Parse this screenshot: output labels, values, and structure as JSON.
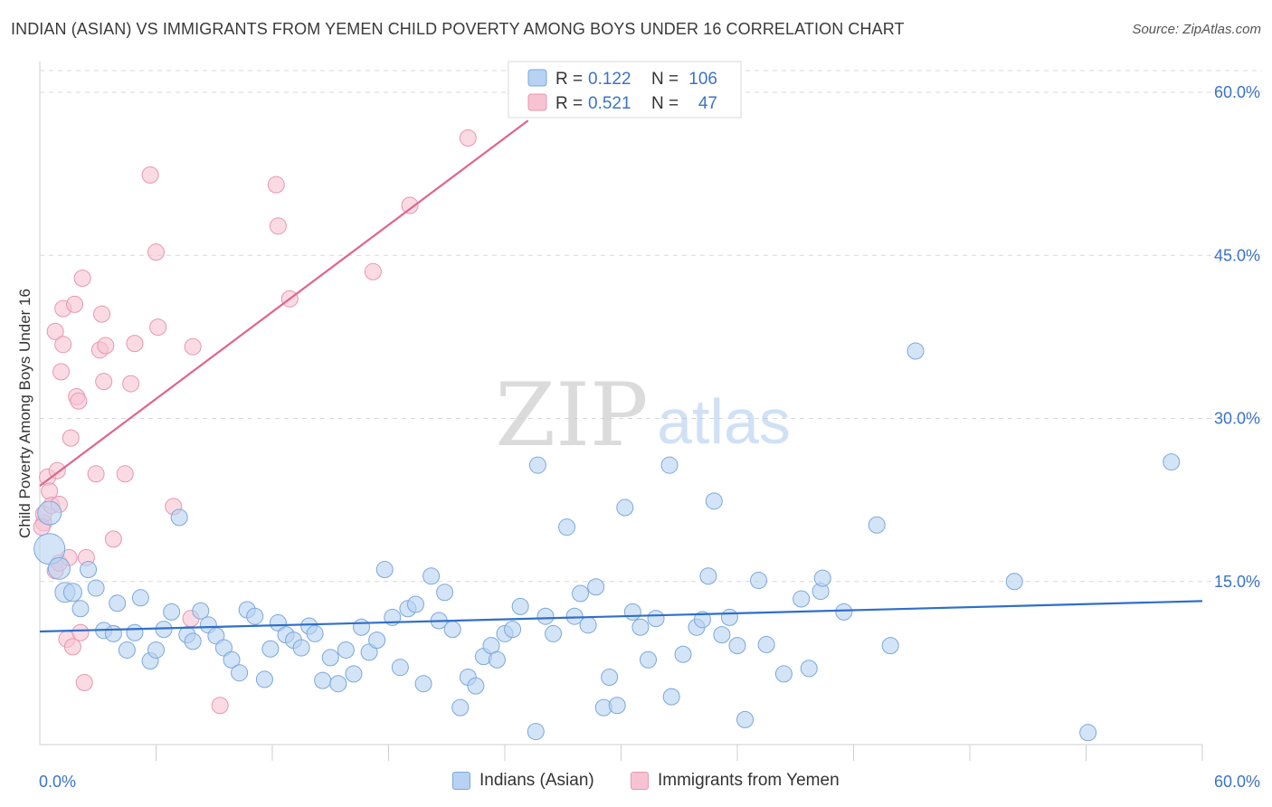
{
  "title": "INDIAN (ASIAN) VS IMMIGRANTS FROM YEMEN CHILD POVERTY AMONG BOYS UNDER 16 CORRELATION CHART",
  "source": "Source: ZipAtlas.com",
  "watermark": {
    "zip": "ZIP",
    "atlas": "atlas"
  },
  "colors": {
    "blue_fill": "#b7d2f2",
    "blue_stroke": "#7aa8dc",
    "blue_line": "#2f6fc9",
    "pink_fill": "#f7c3d2",
    "pink_stroke": "#e896b0",
    "pink_line": "#e0648c",
    "tick_label": "#3b73c6",
    "grid": "#d9d9d9"
  },
  "legend_top": [
    {
      "series": "blue",
      "r_label": "R =",
      "r_value": "0.122",
      "n_label": "N =",
      "n_value": "106"
    },
    {
      "series": "pink",
      "r_label": "R =",
      "r_value": "0.521",
      "n_label": "N =",
      "n_value": "47"
    }
  ],
  "legend_bottom": [
    {
      "series": "blue",
      "label": "Indians (Asian)"
    },
    {
      "series": "pink",
      "label": "Immigrants from Yemen"
    }
  ],
  "chart_data": {
    "type": "scatter",
    "title": "INDIAN (ASIAN) VS IMMIGRANTS FROM YEMEN CHILD POVERTY AMONG BOYS UNDER 16 CORRELATION CHART",
    "xlabel": "",
    "ylabel": "Child Poverty Among Boys Under 16",
    "xlim": [
      0,
      60
    ],
    "ylim": [
      0,
      62
    ],
    "x_tick_labels": [
      "0.0%",
      "60.0%"
    ],
    "y_ticks": [
      15,
      30,
      45,
      60
    ],
    "y_tick_labels": [
      "15.0%",
      "30.0%",
      "45.0%",
      "60.0%"
    ],
    "grid": true,
    "series": [
      {
        "name": "Indians (Asian)",
        "color": "blue",
        "regression": {
          "x": [
            0,
            60
          ],
          "y": [
            10.4,
            13.2
          ]
        },
        "points": [
          [
            0.5,
            18.0
          ],
          [
            0.5,
            21.3
          ],
          [
            1.0,
            16.2
          ],
          [
            1.3,
            14.0
          ],
          [
            1.7,
            14.0
          ],
          [
            2.1,
            12.5
          ],
          [
            2.5,
            16.1
          ],
          [
            2.9,
            14.4
          ],
          [
            3.3,
            10.5
          ],
          [
            3.8,
            10.2
          ],
          [
            4.0,
            13.0
          ],
          [
            4.5,
            8.7
          ],
          [
            4.9,
            10.3
          ],
          [
            5.2,
            13.5
          ],
          [
            5.7,
            7.7
          ],
          [
            6.0,
            8.7
          ],
          [
            6.4,
            10.6
          ],
          [
            6.8,
            12.2
          ],
          [
            7.2,
            20.9
          ],
          [
            7.6,
            10.1
          ],
          [
            7.9,
            9.5
          ],
          [
            8.3,
            12.3
          ],
          [
            8.7,
            11.0
          ],
          [
            9.1,
            10.0
          ],
          [
            9.5,
            8.9
          ],
          [
            9.9,
            7.8
          ],
          [
            10.3,
            6.6
          ],
          [
            10.7,
            12.4
          ],
          [
            11.1,
            11.8
          ],
          [
            11.6,
            6.0
          ],
          [
            11.9,
            8.8
          ],
          [
            12.3,
            11.2
          ],
          [
            12.7,
            10.1
          ],
          [
            13.1,
            9.6
          ],
          [
            13.5,
            8.9
          ],
          [
            13.9,
            10.9
          ],
          [
            14.2,
            10.2
          ],
          [
            14.6,
            5.9
          ],
          [
            15.0,
            8.0
          ],
          [
            15.4,
            5.6
          ],
          [
            15.8,
            8.7
          ],
          [
            16.2,
            6.5
          ],
          [
            16.6,
            10.8
          ],
          [
            17.0,
            8.5
          ],
          [
            17.4,
            9.6
          ],
          [
            17.8,
            16.1
          ],
          [
            18.2,
            11.7
          ],
          [
            18.6,
            7.1
          ],
          [
            19.0,
            12.5
          ],
          [
            19.4,
            12.9
          ],
          [
            19.8,
            5.6
          ],
          [
            20.2,
            15.5
          ],
          [
            20.6,
            11.4
          ],
          [
            20.9,
            14.0
          ],
          [
            21.3,
            10.6
          ],
          [
            21.7,
            3.4
          ],
          [
            22.1,
            6.2
          ],
          [
            22.5,
            5.4
          ],
          [
            22.9,
            8.1
          ],
          [
            23.3,
            9.1
          ],
          [
            23.6,
            7.8
          ],
          [
            24.0,
            10.2
          ],
          [
            24.4,
            10.6
          ],
          [
            24.8,
            12.7
          ],
          [
            25.6,
            1.2
          ],
          [
            25.7,
            25.7
          ],
          [
            26.1,
            11.8
          ],
          [
            26.5,
            10.2
          ],
          [
            27.2,
            20.0
          ],
          [
            27.6,
            11.8
          ],
          [
            27.9,
            13.9
          ],
          [
            28.3,
            11.0
          ],
          [
            28.7,
            14.5
          ],
          [
            29.1,
            3.4
          ],
          [
            29.4,
            6.2
          ],
          [
            29.8,
            3.6
          ],
          [
            30.2,
            21.8
          ],
          [
            30.6,
            12.2
          ],
          [
            31.0,
            10.8
          ],
          [
            31.4,
            7.8
          ],
          [
            31.8,
            11.6
          ],
          [
            32.5,
            25.7
          ],
          [
            32.6,
            4.4
          ],
          [
            33.2,
            8.3
          ],
          [
            33.9,
            10.8
          ],
          [
            34.2,
            11.5
          ],
          [
            34.5,
            15.5
          ],
          [
            34.8,
            22.4
          ],
          [
            35.2,
            10.1
          ],
          [
            35.6,
            11.7
          ],
          [
            36.0,
            9.1
          ],
          [
            36.4,
            2.3
          ],
          [
            37.1,
            15.1
          ],
          [
            37.5,
            9.2
          ],
          [
            38.4,
            6.5
          ],
          [
            39.3,
            13.4
          ],
          [
            39.7,
            7.0
          ],
          [
            40.3,
            14.1
          ],
          [
            40.4,
            15.3
          ],
          [
            41.5,
            12.2
          ],
          [
            43.2,
            20.2
          ],
          [
            43.9,
            9.1
          ],
          [
            45.2,
            36.2
          ],
          [
            50.3,
            15.0
          ],
          [
            54.1,
            1.1
          ],
          [
            58.4,
            26.0
          ]
        ]
      },
      {
        "name": "Immigrants from Yemen",
        "color": "pink",
        "regression": {
          "x": [
            0,
            25.2
          ],
          "y": [
            23.8,
            57.4
          ]
        },
        "points": [
          [
            0.2,
            20.4
          ],
          [
            0.2,
            21.2
          ],
          [
            0.4,
            24.6
          ],
          [
            0.5,
            23.3
          ],
          [
            0.6,
            22.0
          ],
          [
            0.8,
            16.0
          ],
          [
            0.8,
            38.0
          ],
          [
            0.9,
            25.2
          ],
          [
            1.0,
            16.7
          ],
          [
            1.0,
            22.1
          ],
          [
            1.1,
            34.3
          ],
          [
            1.2,
            40.1
          ],
          [
            1.2,
            36.8
          ],
          [
            1.4,
            9.7
          ],
          [
            1.5,
            17.2
          ],
          [
            1.6,
            28.2
          ],
          [
            1.7,
            9.0
          ],
          [
            1.8,
            40.5
          ],
          [
            1.9,
            32.0
          ],
          [
            2.0,
            31.6
          ],
          [
            2.1,
            10.3
          ],
          [
            2.2,
            42.9
          ],
          [
            2.3,
            5.7
          ],
          [
            2.4,
            17.2
          ],
          [
            2.9,
            24.9
          ],
          [
            3.1,
            36.3
          ],
          [
            3.2,
            39.6
          ],
          [
            3.3,
            33.4
          ],
          [
            3.4,
            36.7
          ],
          [
            3.8,
            18.9
          ],
          [
            4.4,
            24.9
          ],
          [
            4.7,
            33.2
          ],
          [
            4.9,
            36.9
          ],
          [
            5.7,
            52.4
          ],
          [
            6.0,
            45.3
          ],
          [
            6.1,
            38.4
          ],
          [
            6.9,
            21.9
          ],
          [
            7.8,
            11.6
          ],
          [
            7.9,
            36.6
          ],
          [
            9.3,
            3.6
          ],
          [
            12.2,
            51.5
          ],
          [
            12.3,
            47.7
          ],
          [
            12.9,
            41.0
          ],
          [
            17.2,
            43.5
          ],
          [
            19.1,
            49.6
          ],
          [
            22.1,
            55.8
          ],
          [
            0.1,
            20.0
          ]
        ]
      }
    ]
  }
}
